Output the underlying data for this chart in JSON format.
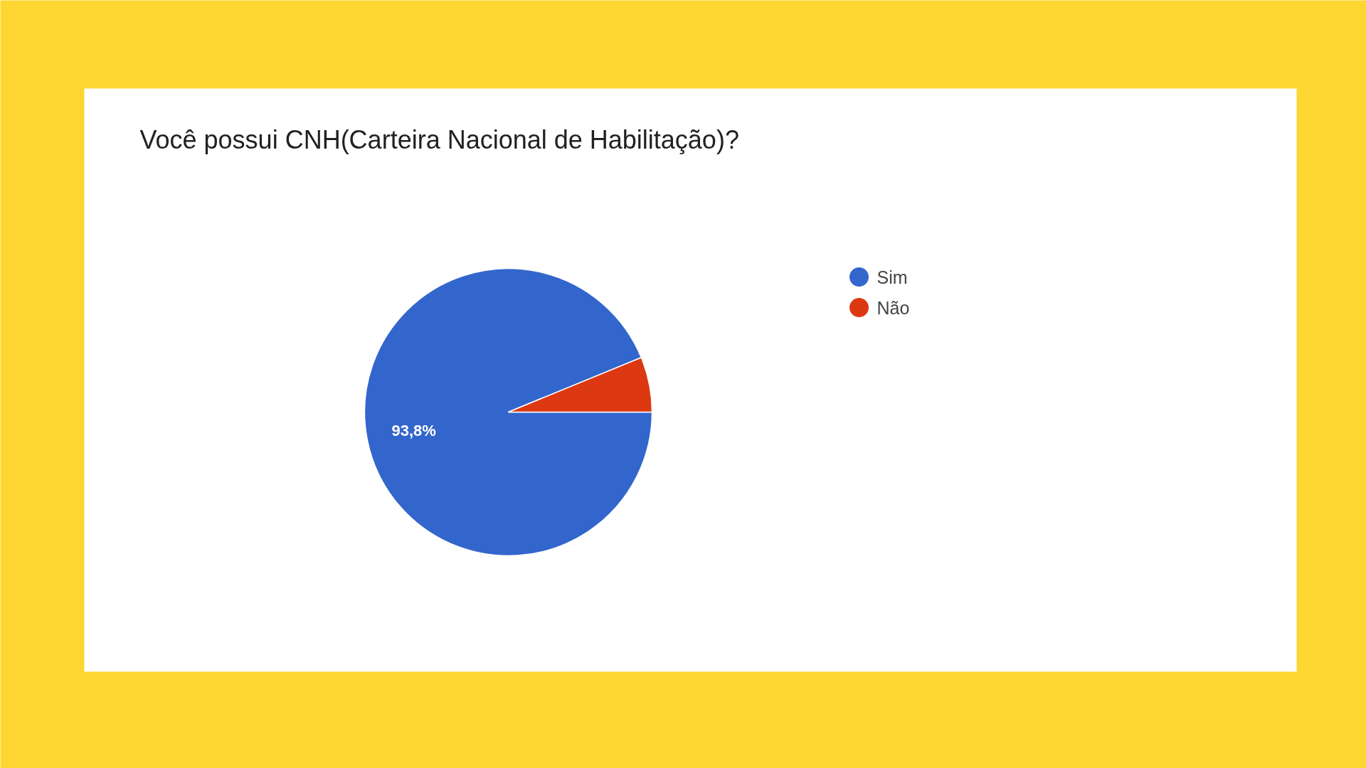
{
  "chart_data": {
    "type": "pie",
    "title": "Você possui CNH(Carteira Nacional de Habilitação)?",
    "categories": [
      "Sim",
      "Não"
    ],
    "values": [
      93.8,
      6.2
    ],
    "colors": [
      "#3366cc",
      "#dc3912"
    ],
    "value_labels": [
      "93,8%",
      null
    ],
    "legend": "top right"
  }
}
